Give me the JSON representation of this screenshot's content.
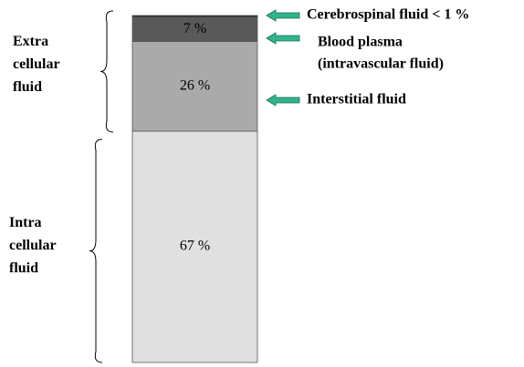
{
  "chart_data": {
    "type": "stacked-column",
    "values": [
      67,
      26,
      7,
      0.5
    ],
    "value_labels": [
      "67 %",
      "26 %",
      "7 %",
      null
    ],
    "colors": [
      "#e0e0e0",
      "#aaaaaa",
      "#595959",
      "#262626"
    ],
    "labels": [
      null,
      "Interstitial fluid",
      [
        "Blood plasma",
        "(intravascular fluid)"
      ],
      "Cerebrospinal fluid < 1 %"
    ],
    "groups": [
      [
        "Intra",
        "cellular",
        "fluid"
      ],
      [
        "Extra",
        "cellular",
        "fluid"
      ]
    ]
  }
}
